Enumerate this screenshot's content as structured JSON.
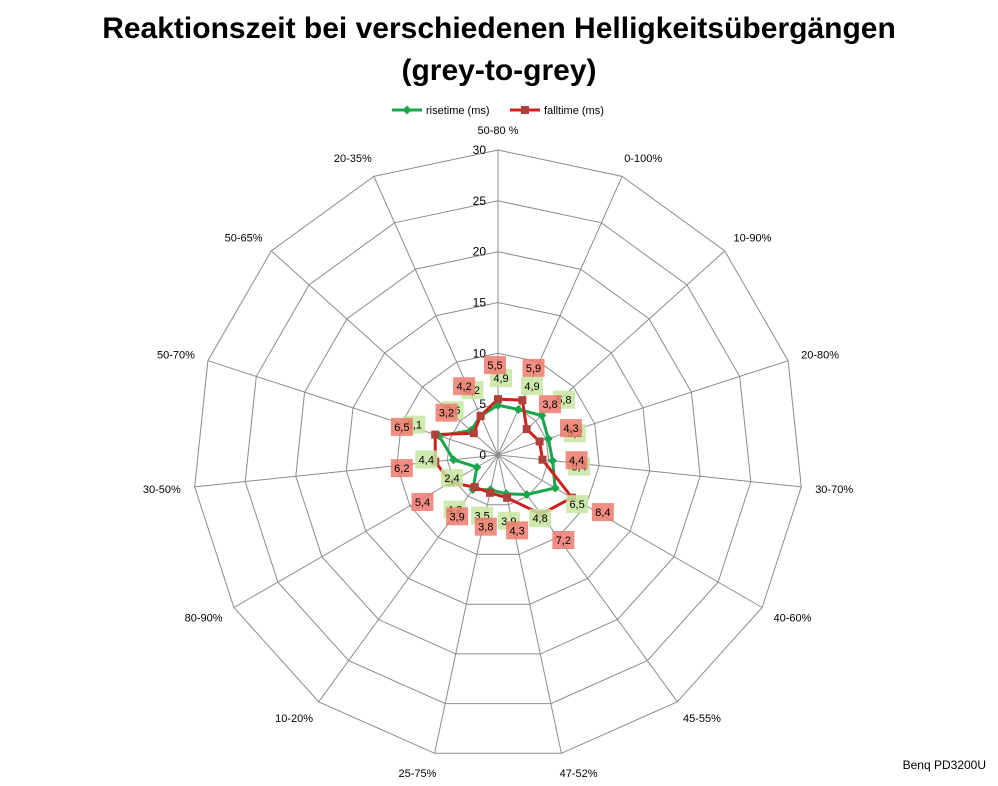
{
  "chart_data": {
    "type": "radar",
    "title_line1": "Reaktionszeit bei verschiedenen Helligkeitsübergängen",
    "title_line2": "(grey-to-grey)",
    "legend_position": "top",
    "rlim": [
      0,
      30
    ],
    "r_ticks": [
      0,
      5,
      10,
      15,
      20,
      25,
      30
    ],
    "categories": [
      "50-80 %",
      "0-100%",
      "10-90%",
      "20-80%",
      "30-70%",
      "40-60%",
      "45-55%",
      "47-52%",
      "25-75%",
      "10-20%",
      "80-90%",
      "30-50%",
      "50-70%",
      "50-65%",
      "20-35%"
    ],
    "series": [
      {
        "name": "risetime (ms)",
        "color": "#1aa64a",
        "label_bg": "#c6e6a0",
        "values": [
          4.9,
          4.9,
          5.8,
          5.2,
          5.4,
          6.5,
          4.8,
          3.9,
          3.5,
          4.2,
          2.4,
          4.4,
          6.1,
          3.6,
          4.2
        ],
        "labels": [
          "4,9",
          "4,9",
          "5,8",
          "5,2",
          "5,4",
          "6,5",
          "4,8",
          "3,9",
          "3,5",
          "4,2",
          "2,4",
          "4,4",
          "6,1",
          "3,6",
          "4,2"
        ]
      },
      {
        "name": "falltime (ms)",
        "color": "#d01f1f",
        "label_bg": "#ee7a6e",
        "values": [
          5.5,
          5.9,
          3.8,
          4.3,
          4.4,
          8.4,
          7.2,
          4.3,
          3.8,
          3.9,
          5.4,
          6.2,
          6.5,
          3.2,
          4.2
        ],
        "labels": [
          "5,5",
          "5,9",
          "3,8",
          "4,3",
          "4,4",
          "8,4",
          "7,2",
          "4,3",
          "3,8",
          "3,9",
          "5,4",
          "6,2",
          "6,5",
          "3,2",
          "4,2"
        ]
      }
    ],
    "source_note": "Benq PD3200U"
  }
}
